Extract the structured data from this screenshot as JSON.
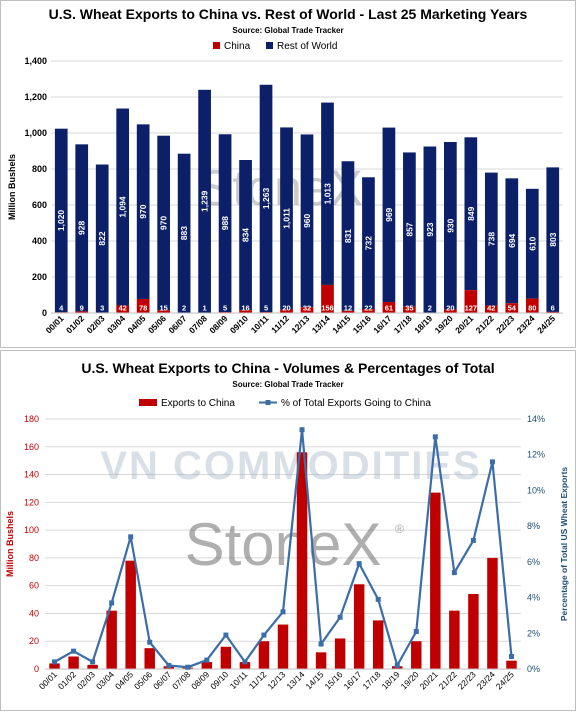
{
  "colors": {
    "china": "#c00000",
    "rest": "#0b2069",
    "pct_line": "#3b6ea8",
    "grid": "#d9d9d9",
    "axis_text": "#000000",
    "left_axis_red": "#c00000",
    "right_axis_blue": "#1f4e79"
  },
  "watermarks": {
    "stonex": "StoneX",
    "vn": "VN COMMODITIES",
    "stonex_reg": "®"
  },
  "chart_data": [
    {
      "type": "bar",
      "stacked": true,
      "title": "U.S. Wheat Exports to China vs. Rest of World - Last 25 Marketing Years",
      "subtitle": "Source: Global Trade Tracker",
      "ylabel": "Million Bushels",
      "ylim": [
        0,
        1400
      ],
      "yticks": [
        "0",
        "200",
        "400",
        "600",
        "800",
        "1,000",
        "1,200",
        "1,400"
      ],
      "yticks_values": [
        0,
        200,
        400,
        600,
        800,
        1000,
        1200,
        1400
      ],
      "grid": true,
      "legend": "top-center",
      "categories": [
        "00/01",
        "01/02",
        "02/03",
        "03/04",
        "04/05",
        "05/06",
        "06/07",
        "07/08",
        "08/09",
        "09/10",
        "10/11",
        "11/12",
        "12/13",
        "13/14",
        "14/15",
        "15/16",
        "16/17",
        "17/18",
        "18/19",
        "19/20",
        "20/21",
        "21/22",
        "22/23",
        "23/24",
        "24/25"
      ],
      "series": [
        {
          "name": "China",
          "values": [
            4,
            9,
            3,
            42,
            78,
            15,
            2,
            1,
            5,
            16,
            5,
            20,
            32,
            156,
            12,
            22,
            61,
            35,
            2,
            20,
            127,
            42,
            54,
            80,
            6
          ],
          "labels": [
            "4",
            "9",
            "3",
            "42",
            "78",
            "15",
            "2",
            "1",
            "5",
            "16",
            "5",
            "20",
            "32",
            "156",
            "12",
            "22",
            "61",
            "35",
            "2",
            "20",
            "127",
            "42",
            "54",
            "80",
            "6"
          ]
        },
        {
          "name": "Rest of World",
          "values": [
            1020,
            928,
            822,
            1094,
            970,
            970,
            883,
            1239,
            988,
            834,
            1263,
            1011,
            960,
            1013,
            831,
            732,
            969,
            857,
            923,
            930,
            849,
            738,
            694,
            610,
            803
          ],
          "labels": [
            "1,020",
            "928",
            "822",
            "1,094",
            "970",
            "970",
            "883",
            "1,239",
            "988",
            "834",
            "1,263",
            "1,011",
            "960",
            "1,013",
            "831",
            "732",
            "969",
            "857",
            "923",
            "930",
            "849",
            "738",
            "694",
            "610",
            "803"
          ]
        }
      ]
    },
    {
      "type": "bar",
      "combo": "bar+line",
      "title": "U.S. Wheat Exports to China - Volumes & Percentages of Total",
      "subtitle": "Source: Global Trade Tracker",
      "ylabel": "Million Bushels",
      "y2label": "Percentage of Total US Wheat Exports",
      "ylim": [
        0,
        180
      ],
      "yticks": [
        "0",
        "20",
        "40",
        "60",
        "80",
        "100",
        "120",
        "140",
        "160",
        "180"
      ],
      "yticks_values": [
        0,
        20,
        40,
        60,
        80,
        100,
        120,
        140,
        160,
        180
      ],
      "y2lim": [
        0,
        14
      ],
      "y2ticks": [
        "0%",
        "2%",
        "4%",
        "6%",
        "8%",
        "10%",
        "12%",
        "14%"
      ],
      "y2ticks_values": [
        0,
        2,
        4,
        6,
        8,
        10,
        12,
        14
      ],
      "grid": true,
      "legend": "top-center",
      "categories": [
        "00/01",
        "01/02",
        "02/03",
        "03/04",
        "04/05",
        "05/06",
        "06/07",
        "07/08",
        "08/09",
        "09/10",
        "10/11",
        "11/12",
        "12/13",
        "13/14",
        "14/15",
        "15/16",
        "16/17",
        "17/18",
        "18/19",
        "19/20",
        "20/21",
        "21/22",
        "22/23",
        "23/24",
        "24/25"
      ],
      "series": [
        {
          "name": "Exports to China",
          "kind": "bar",
          "values": [
            4,
            9,
            3,
            42,
            78,
            15,
            2,
            1,
            5,
            16,
            5,
            20,
            32,
            156,
            12,
            22,
            61,
            35,
            2,
            20,
            127,
            42,
            54,
            80,
            6
          ]
        },
        {
          "name": "% of Total Exports Going to China",
          "kind": "line",
          "axis": "right",
          "values": [
            0.4,
            1.0,
            0.4,
            3.7,
            7.4,
            1.5,
            0.2,
            0.1,
            0.5,
            1.9,
            0.4,
            1.9,
            3.2,
            13.4,
            1.4,
            2.9,
            5.9,
            3.9,
            0.2,
            2.1,
            13.0,
            5.4,
            7.2,
            11.6,
            0.7
          ]
        }
      ]
    }
  ]
}
